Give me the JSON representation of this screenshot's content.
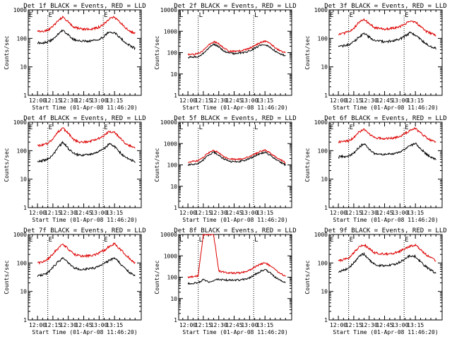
{
  "chart_data": [
    {
      "type": "line",
      "title": "Det 1f BLACK = Events, RED = LLD",
      "xlabel": "Start Time (01-Apr-08 11:46:20)",
      "ylabel": "Counts/sec",
      "x_ticks": [
        "12:00",
        "12:15",
        "12:30",
        "12:45",
        "13:00",
        "13:15"
      ],
      "y_ticks": [
        "1",
        "10",
        "100",
        "1000"
      ],
      "ylim": [
        1,
        1000
      ],
      "y_scale": "log",
      "x_minutes": [
        0,
        5,
        10,
        15,
        20,
        25,
        30,
        35,
        40,
        45,
        50,
        55,
        60,
        65,
        70,
        75,
        80,
        85,
        90,
        95
      ],
      "series": [
        {
          "name": "Events",
          "color": "#000000",
          "values": [
            70,
            70,
            75,
            90,
            140,
            200,
            130,
            90,
            80,
            80,
            80,
            85,
            95,
            120,
            170,
            160,
            110,
            75,
            55,
            45
          ]
        },
        {
          "name": "LLD",
          "color": "#dd0000",
          "values": [
            170,
            175,
            190,
            260,
            420,
            560,
            380,
            260,
            220,
            210,
            210,
            220,
            250,
            330,
            500,
            550,
            380,
            250,
            180,
            150
          ]
        }
      ],
      "markers_minutes": [
        10,
        64
      ],
      "marker_label": "E"
    },
    {
      "type": "line",
      "title": "Det 2f BLACK = Events, RED = LLD",
      "xlabel": "Start Time (01-Apr-08 11:46:20)",
      "ylabel": "Counts/sec",
      "x_ticks": [
        "12:00",
        "12:15",
        "12:30",
        "12:45",
        "13:00",
        "13:15"
      ],
      "y_ticks": [
        "1",
        "10",
        "100",
        "1000",
        "10000"
      ],
      "ylim": [
        1,
        10000
      ],
      "y_scale": "log",
      "x_minutes": [
        0,
        5,
        10,
        15,
        20,
        25,
        30,
        35,
        40,
        45,
        50,
        55,
        60,
        65,
        70,
        75,
        80,
        85,
        90,
        95
      ],
      "series": [
        {
          "name": "Events",
          "color": "#000000",
          "values": [
            60,
            62,
            65,
            90,
            160,
            250,
            190,
            120,
            95,
            90,
            95,
            100,
            120,
            160,
            210,
            240,
            180,
            120,
            85,
            70
          ]
        },
        {
          "name": "LLD",
          "color": "#dd0000",
          "values": [
            80,
            82,
            90,
            130,
            220,
            330,
            260,
            160,
            120,
            115,
            120,
            130,
            160,
            210,
            290,
            350,
            260,
            170,
            120,
            100
          ]
        }
      ],
      "markers_minutes": [
        10,
        64
      ],
      "marker_label": "L"
    },
    {
      "type": "line",
      "title": "Det 3f BLACK = Events, RED = LLD",
      "xlabel": "Start Time (01-Apr-08 11:46:20)",
      "ylabel": "Counts/sec",
      "x_ticks": [
        "12:00",
        "12:15",
        "12:30",
        "12:45",
        "13:00",
        "13:15"
      ],
      "y_ticks": [
        "1",
        "10",
        "100",
        "1000"
      ],
      "ylim": [
        1,
        1000
      ],
      "y_scale": "log",
      "x_minutes": [
        0,
        5,
        10,
        15,
        20,
        25,
        30,
        35,
        40,
        45,
        50,
        55,
        60,
        65,
        70,
        75,
        80,
        85,
        90,
        95
      ],
      "series": [
        {
          "name": "Events",
          "color": "#000000",
          "values": [
            50,
            55,
            60,
            75,
            110,
            150,
            110,
            85,
            80,
            75,
            80,
            85,
            95,
            120,
            160,
            130,
            90,
            65,
            50,
            45
          ]
        },
        {
          "name": "LLD",
          "color": "#dd0000",
          "values": [
            140,
            150,
            170,
            230,
            360,
            470,
            330,
            240,
            220,
            210,
            220,
            230,
            260,
            320,
            420,
            380,
            260,
            180,
            150,
            130
          ]
        }
      ],
      "markers_minutes": [
        10,
        64
      ],
      "marker_label": "E"
    },
    {
      "type": "line",
      "title": "Det 4f BLACK = Events, RED = LLD",
      "xlabel": "Start Time (01-Apr-08 11:46:20)",
      "ylabel": "Counts/sec",
      "x_ticks": [
        "12:00",
        "12:15",
        "12:30",
        "12:45",
        "13:00",
        "13:15"
      ],
      "y_ticks": [
        "1",
        "10",
        "100",
        "1000"
      ],
      "ylim": [
        1,
        1000
      ],
      "y_scale": "log",
      "x_minutes": [
        0,
        5,
        10,
        15,
        20,
        25,
        30,
        35,
        40,
        45,
        50,
        55,
        60,
        65,
        70,
        75,
        80,
        85,
        90,
        95
      ],
      "series": [
        {
          "name": "Events",
          "color": "#000000",
          "values": [
            40,
            45,
            50,
            70,
            130,
            200,
            120,
            80,
            70,
            70,
            75,
            80,
            95,
            120,
            170,
            140,
            90,
            60,
            50,
            40
          ]
        },
        {
          "name": "LLD",
          "color": "#dd0000",
          "values": [
            150,
            160,
            180,
            260,
            450,
            620,
            400,
            250,
            200,
            200,
            210,
            230,
            270,
            340,
            480,
            430,
            290,
            190,
            150,
            130
          ]
        }
      ],
      "markers_minutes": [
        10,
        64
      ],
      "marker_label": "E"
    },
    {
      "type": "line",
      "title": "Det 5f BLACK = Events, RED = LLD",
      "xlabel": "Start Time (01-Apr-08 11:46:20)",
      "ylabel": "Counts/sec",
      "x_ticks": [
        "12:00",
        "12:15",
        "12:30",
        "12:45",
        "13:00",
        "13:15"
      ],
      "y_ticks": [
        "1",
        "10",
        "100",
        "1000",
        "10000"
      ],
      "ylim": [
        1,
        10000
      ],
      "y_scale": "log",
      "x_minutes": [
        0,
        5,
        10,
        15,
        20,
        25,
        30,
        35,
        40,
        45,
        50,
        55,
        60,
        65,
        70,
        75,
        80,
        85,
        90,
        95
      ],
      "series": [
        {
          "name": "Events",
          "color": "#000000",
          "values": [
            100,
            105,
            115,
            170,
            280,
            400,
            280,
            190,
            150,
            140,
            145,
            160,
            200,
            260,
            340,
            390,
            290,
            190,
            130,
            100
          ]
        },
        {
          "name": "LLD",
          "color": "#dd0000",
          "values": [
            140,
            145,
            160,
            230,
            370,
            500,
            360,
            240,
            190,
            180,
            185,
            200,
            250,
            320,
            420,
            480,
            360,
            240,
            170,
            130
          ]
        }
      ],
      "markers_minutes": [
        10,
        64
      ],
      "marker_label": "L"
    },
    {
      "type": "line",
      "title": "Det 6f BLACK = Events, RED = LLD",
      "xlabel": "Start Time (01-Apr-08 11:46:20)",
      "ylabel": "Counts/sec",
      "x_ticks": [
        "12:00",
        "12:15",
        "12:30",
        "12:45",
        "13:00",
        "13:15"
      ],
      "y_ticks": [
        "1",
        "10",
        "100",
        "1000"
      ],
      "ylim": [
        1,
        1000
      ],
      "y_scale": "log",
      "x_minutes": [
        0,
        5,
        10,
        15,
        20,
        25,
        30,
        35,
        40,
        45,
        50,
        55,
        60,
        65,
        70,
        75,
        80,
        85,
        90,
        95
      ],
      "series": [
        {
          "name": "Events",
          "color": "#000000",
          "values": [
            60,
            62,
            65,
            80,
            130,
            180,
            110,
            80,
            75,
            75,
            78,
            80,
            90,
            110,
            150,
            180,
            120,
            80,
            60,
            50
          ]
        },
        {
          "name": "LLD",
          "color": "#dd0000",
          "values": [
            200,
            205,
            220,
            290,
            450,
            580,
            390,
            290,
            270,
            265,
            270,
            285,
            320,
            400,
            520,
            600,
            430,
            300,
            230,
            200
          ]
        }
      ],
      "markers_minutes": [
        10,
        64
      ],
      "marker_label": "E"
    },
    {
      "type": "line",
      "title": "Det 7f BLACK = Events, RED = LLD",
      "xlabel": "Start Time (01-Apr-08 11:46:20)",
      "ylabel": "Counts/sec",
      "x_ticks": [
        "12:00",
        "12:15",
        "12:30",
        "12:45",
        "13:00",
        "13:15"
      ],
      "y_ticks": [
        "1",
        "10",
        "100",
        "1000"
      ],
      "ylim": [
        1,
        1000
      ],
      "y_scale": "log",
      "x_minutes": [
        0,
        5,
        10,
        15,
        20,
        25,
        30,
        35,
        40,
        45,
        50,
        55,
        60,
        65,
        70,
        75,
        80,
        85,
        90,
        95
      ],
      "series": [
        {
          "name": "Events",
          "color": "#000000",
          "values": [
            35,
            38,
            45,
            70,
            110,
            150,
            100,
            70,
            60,
            60,
            62,
            65,
            75,
            95,
            125,
            150,
            100,
            65,
            45,
            35
          ]
        },
        {
          "name": "LLD",
          "color": "#dd0000",
          "values": [
            100,
            110,
            130,
            210,
            330,
            450,
            310,
            210,
            180,
            175,
            180,
            190,
            220,
            280,
            380,
            470,
            320,
            210,
            140,
            100
          ]
        }
      ],
      "markers_minutes": [
        10,
        64
      ],
      "marker_label": "E"
    },
    {
      "type": "line",
      "title": "Det 8f BLACK = Events, RED = LLD",
      "xlabel": "Start Time (01-Apr-08 11:46:20)",
      "ylabel": "Counts/sec",
      "x_ticks": [
        "12:00",
        "12:15",
        "12:30",
        "12:45",
        "13:00",
        "13:15"
      ],
      "y_ticks": [
        "1",
        "10",
        "100",
        "1000",
        "10000"
      ],
      "ylim": [
        1,
        10000
      ],
      "y_scale": "log",
      "x_minutes": [
        0,
        5,
        10,
        15,
        20,
        25,
        30,
        35,
        40,
        45,
        50,
        55,
        60,
        65,
        70,
        75,
        80,
        85,
        90,
        95
      ],
      "series": [
        {
          "name": "Events",
          "color": "#000000",
          "values": [
            50,
            52,
            55,
            75,
            60,
            70,
            80,
            75,
            72,
            72,
            75,
            80,
            95,
            130,
            180,
            230,
            160,
            100,
            70,
            55
          ]
        },
        {
          "name": "LLD",
          "color": "#dd0000",
          "values": [
            100,
            105,
            115,
            10000,
            10000,
            10000,
            200,
            170,
            160,
            155,
            160,
            175,
            210,
            290,
            400,
            480,
            340,
            220,
            150,
            110
          ]
        }
      ],
      "markers_minutes": [
        10,
        64
      ],
      "marker_label": "L"
    },
    {
      "type": "line",
      "title": "Det 9f BLACK = Events, RED = LLD",
      "xlabel": "Start Time (01-Apr-08 11:46:20)",
      "ylabel": "Counts/sec",
      "x_ticks": [
        "12:00",
        "12:15",
        "12:30",
        "12:45",
        "13:00",
        "13:15"
      ],
      "y_ticks": [
        "1",
        "10",
        "100",
        "1000"
      ],
      "ylim": [
        1,
        1000
      ],
      "y_scale": "log",
      "x_minutes": [
        0,
        5,
        10,
        15,
        20,
        25,
        30,
        35,
        40,
        45,
        50,
        55,
        60,
        65,
        70,
        75,
        80,
        85,
        90,
        95
      ],
      "series": [
        {
          "name": "Events",
          "color": "#000000",
          "values": [
            50,
            55,
            65,
            100,
            170,
            210,
            130,
            90,
            80,
            80,
            82,
            90,
            110,
            140,
            180,
            170,
            110,
            75,
            55,
            45
          ]
        },
        {
          "name": "LLD",
          "color": "#dd0000",
          "values": [
            120,
            130,
            150,
            230,
            360,
            440,
            320,
            230,
            210,
            205,
            210,
            225,
            260,
            320,
            400,
            420,
            300,
            200,
            150,
            120
          ]
        }
      ],
      "markers_minutes": [
        10,
        64
      ],
      "marker_label": "E"
    }
  ]
}
